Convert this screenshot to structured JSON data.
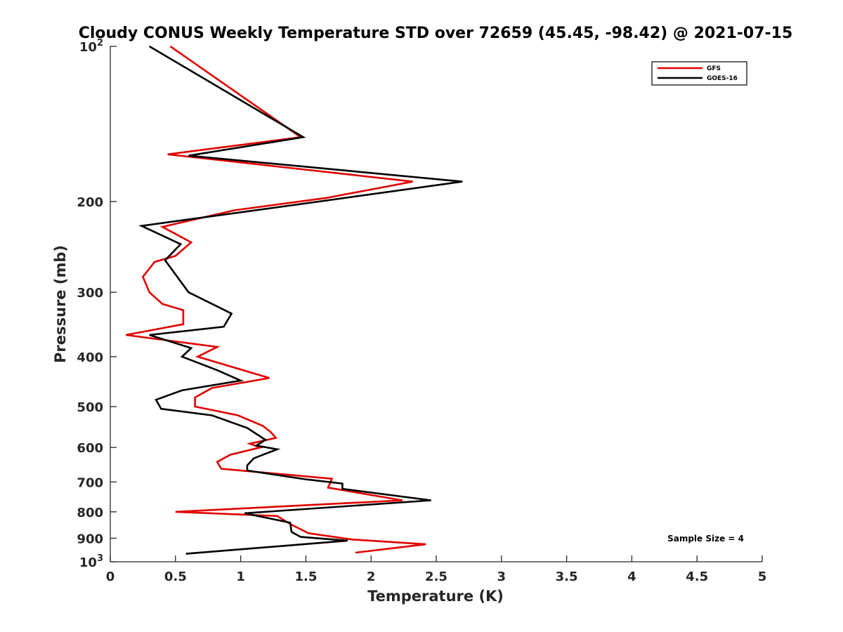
{
  "chart_data": {
    "type": "line",
    "title": "Cloudy CONUS Weekly Temperature STD over 72659 (45.45, -98.42) @ 2021-07-15",
    "xlabel": "Temperature (K)",
    "ylabel": "Pressure (mb)",
    "xlim": [
      0,
      5
    ],
    "ylim": [
      100,
      1000
    ],
    "yscale": "log",
    "y_reversed": true,
    "grid": false,
    "legend_position": "top-right",
    "x_ticks": [
      {
        "value": 0,
        "label": "0"
      },
      {
        "value": 0.5,
        "label": "0.5"
      },
      {
        "value": 1,
        "label": "1"
      },
      {
        "value": 1.5,
        "label": "1.5"
      },
      {
        "value": 2,
        "label": "2"
      },
      {
        "value": 2.5,
        "label": "2.5"
      },
      {
        "value": 3,
        "label": "3"
      },
      {
        "value": 3.5,
        "label": "3.5"
      },
      {
        "value": 4,
        "label": "4"
      },
      {
        "value": 4.5,
        "label": "4.5"
      },
      {
        "value": 5,
        "label": "5"
      }
    ],
    "y_ticks": [
      {
        "value": 100,
        "base": "10",
        "exp": "2"
      },
      {
        "value": 200,
        "label": "200"
      },
      {
        "value": 300,
        "label": "300"
      },
      {
        "value": 400,
        "label": "400"
      },
      {
        "value": 500,
        "label": "500"
      },
      {
        "value": 600,
        "label": "600"
      },
      {
        "value": 700,
        "label": "700"
      },
      {
        "value": 800,
        "label": "800"
      },
      {
        "value": 900,
        "label": "900"
      },
      {
        "value": 1000,
        "base": "10",
        "exp": "3"
      }
    ],
    "series": [
      {
        "name": "GFS",
        "color": "#e00000",
        "points": [
          {
            "t": 0.46,
            "p": 100
          },
          {
            "t": 1.46,
            "p": 150
          },
          {
            "t": 0.44,
            "p": 162
          },
          {
            "t": 2.32,
            "p": 183
          },
          {
            "t": 1.65,
            "p": 197
          },
          {
            "t": 0.95,
            "p": 208
          },
          {
            "t": 0.4,
            "p": 224
          },
          {
            "t": 0.62,
            "p": 240
          },
          {
            "t": 0.5,
            "p": 255
          },
          {
            "t": 0.34,
            "p": 262
          },
          {
            "t": 0.25,
            "p": 280
          },
          {
            "t": 0.3,
            "p": 300
          },
          {
            "t": 0.4,
            "p": 316
          },
          {
            "t": 0.56,
            "p": 325
          },
          {
            "t": 0.56,
            "p": 346
          },
          {
            "t": 0.12,
            "p": 363
          },
          {
            "t": 0.82,
            "p": 383
          },
          {
            "t": 0.67,
            "p": 400
          },
          {
            "t": 1.22,
            "p": 440
          },
          {
            "t": 0.78,
            "p": 460
          },
          {
            "t": 0.65,
            "p": 480
          },
          {
            "t": 0.65,
            "p": 500
          },
          {
            "t": 0.98,
            "p": 520
          },
          {
            "t": 1.17,
            "p": 545
          },
          {
            "t": 1.23,
            "p": 560
          },
          {
            "t": 1.27,
            "p": 575
          },
          {
            "t": 1.07,
            "p": 590
          },
          {
            "t": 1.15,
            "p": 600
          },
          {
            "t": 0.92,
            "p": 620
          },
          {
            "t": 0.82,
            "p": 640
          },
          {
            "t": 0.85,
            "p": 660
          },
          {
            "t": 1.7,
            "p": 690
          },
          {
            "t": 1.67,
            "p": 718
          },
          {
            "t": 2.24,
            "p": 760
          },
          {
            "t": 0.5,
            "p": 800
          },
          {
            "t": 1.28,
            "p": 815
          },
          {
            "t": 1.38,
            "p": 845
          },
          {
            "t": 1.52,
            "p": 880
          },
          {
            "t": 1.85,
            "p": 905
          },
          {
            "t": 2.42,
            "p": 925
          },
          {
            "t": 1.88,
            "p": 960
          }
        ]
      },
      {
        "name": "GOES-16",
        "color": "#000000",
        "points": [
          {
            "t": 0.3,
            "p": 100
          },
          {
            "t": 1.48,
            "p": 150
          },
          {
            "t": 0.6,
            "p": 163
          },
          {
            "t": 2.7,
            "p": 183
          },
          {
            "t": 1.6,
            "p": 200
          },
          {
            "t": 0.24,
            "p": 223
          },
          {
            "t": 0.54,
            "p": 242
          },
          {
            "t": 0.42,
            "p": 260
          },
          {
            "t": 0.6,
            "p": 300
          },
          {
            "t": 0.93,
            "p": 330
          },
          {
            "t": 0.87,
            "p": 350
          },
          {
            "t": 0.3,
            "p": 363
          },
          {
            "t": 0.62,
            "p": 385
          },
          {
            "t": 0.55,
            "p": 400
          },
          {
            "t": 0.82,
            "p": 425
          },
          {
            "t": 1.0,
            "p": 445
          },
          {
            "t": 0.55,
            "p": 465
          },
          {
            "t": 0.35,
            "p": 485
          },
          {
            "t": 0.39,
            "p": 505
          },
          {
            "t": 0.78,
            "p": 520
          },
          {
            "t": 1.05,
            "p": 550
          },
          {
            "t": 1.19,
            "p": 580
          },
          {
            "t": 1.12,
            "p": 595
          },
          {
            "t": 1.28,
            "p": 605
          },
          {
            "t": 1.1,
            "p": 630
          },
          {
            "t": 1.05,
            "p": 650
          },
          {
            "t": 1.05,
            "p": 665
          },
          {
            "t": 1.5,
            "p": 692
          },
          {
            "t": 1.78,
            "p": 705
          },
          {
            "t": 1.78,
            "p": 722
          },
          {
            "t": 2.46,
            "p": 760
          },
          {
            "t": 1.03,
            "p": 805
          },
          {
            "t": 1.38,
            "p": 840
          },
          {
            "t": 1.39,
            "p": 875
          },
          {
            "t": 1.46,
            "p": 895
          },
          {
            "t": 1.82,
            "p": 910
          },
          {
            "t": 0.58,
            "p": 965
          }
        ]
      }
    ],
    "annotations": [
      "Sample Size = 4"
    ]
  }
}
